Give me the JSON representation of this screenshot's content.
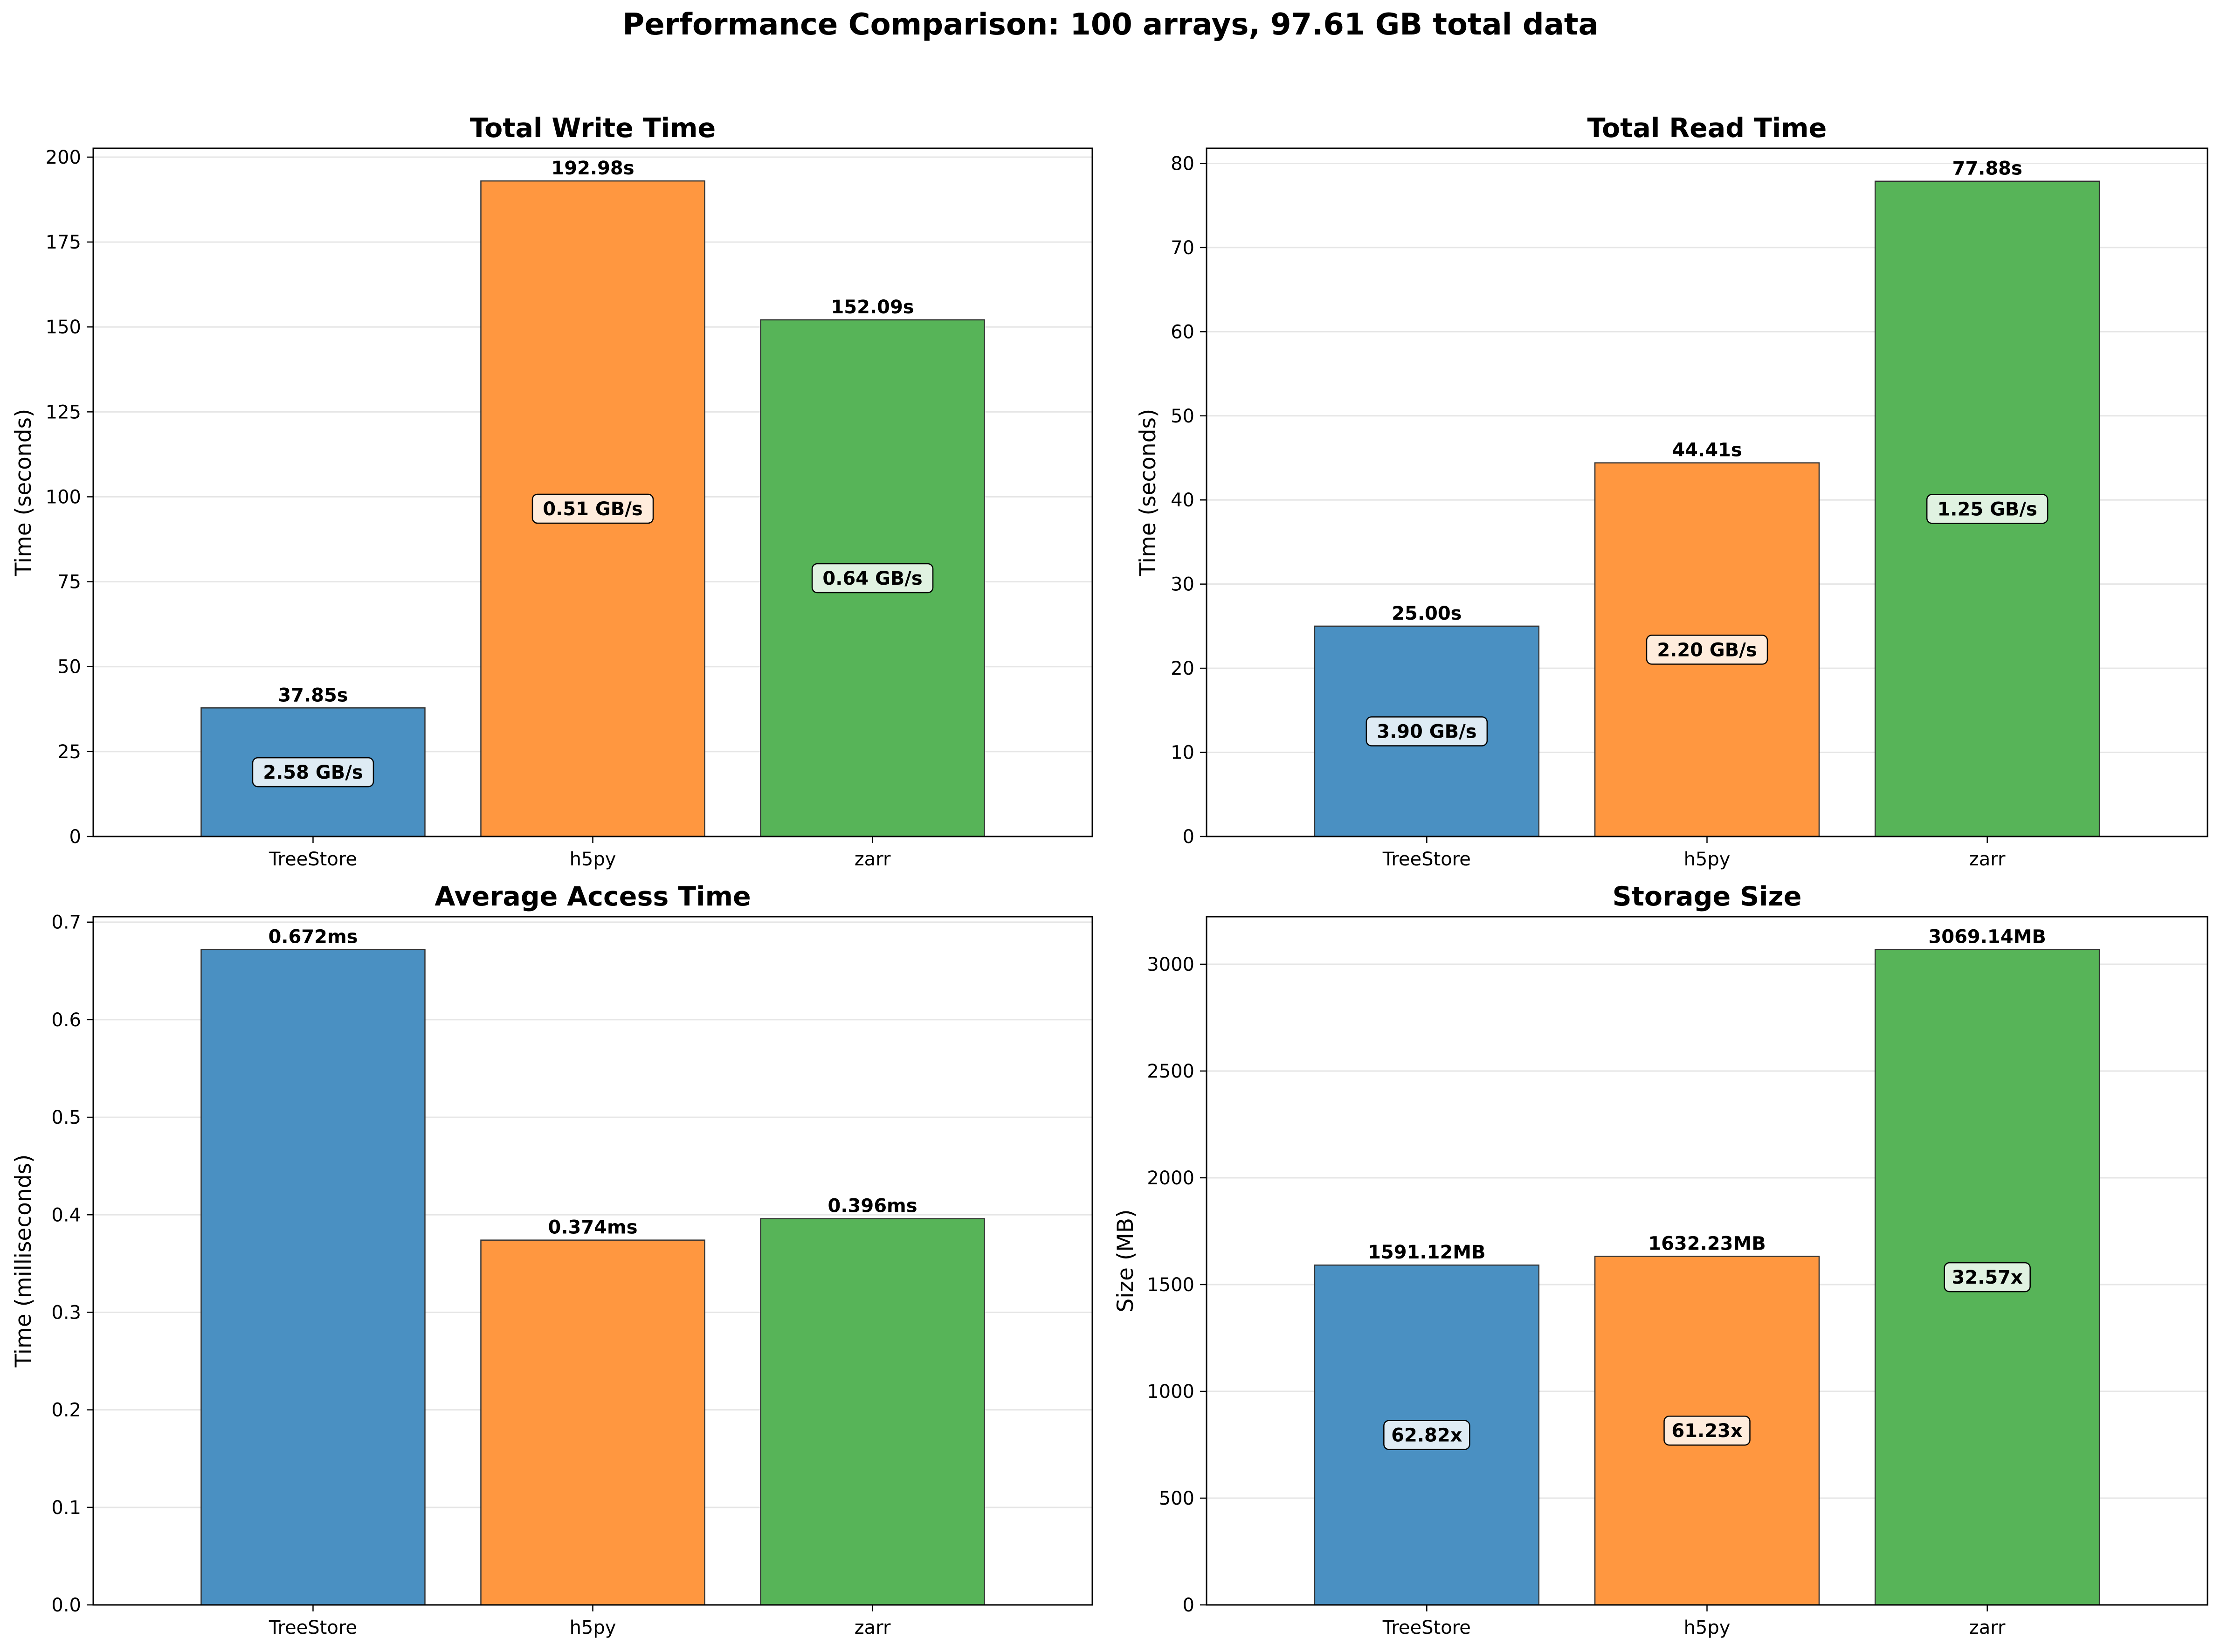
{
  "figure": {
    "title": "Performance Comparison: 100 arrays, 97.61 GB total data"
  },
  "colors": {
    "TreeStore": "#4a90c2",
    "h5py": "#ff9740",
    "zarr": "#57b458",
    "grid": "#e6e6e6"
  },
  "chart_data": [
    {
      "type": "bar",
      "title": "Total Write Time",
      "xlabel": "",
      "ylabel": "Time (seconds)",
      "categories": [
        "TreeStore",
        "h5py",
        "zarr"
      ],
      "values": [
        37.85,
        192.98,
        152.09
      ],
      "value_labels": [
        "37.85s",
        "192.98s",
        "152.09s"
      ],
      "inner_labels": [
        "2.58 GB/s",
        "0.51 GB/s",
        "0.64 GB/s"
      ],
      "ylim": [
        0,
        202.6
      ],
      "yticks": [
        0,
        25,
        50,
        75,
        100,
        125,
        150,
        175,
        200
      ],
      "ytick_labels": [
        "0",
        "25",
        "50",
        "75",
        "100",
        "125",
        "150",
        "175",
        "200"
      ],
      "grid": true
    },
    {
      "type": "bar",
      "title": "Total Read Time",
      "xlabel": "",
      "ylabel": "Time (seconds)",
      "categories": [
        "TreeStore",
        "h5py",
        "zarr"
      ],
      "values": [
        25.0,
        44.41,
        77.88
      ],
      "value_labels": [
        "25.00s",
        "44.41s",
        "77.88s"
      ],
      "inner_labels": [
        "3.90 GB/s",
        "2.20 GB/s",
        "1.25 GB/s"
      ],
      "ylim": [
        0,
        81.8
      ],
      "yticks": [
        0,
        10,
        20,
        30,
        40,
        50,
        60,
        70,
        80
      ],
      "ytick_labels": [
        "0",
        "10",
        "20",
        "30",
        "40",
        "50",
        "60",
        "70",
        "80"
      ],
      "grid": true
    },
    {
      "type": "bar",
      "title": "Average Access Time",
      "xlabel": "",
      "ylabel": "Time (milliseconds)",
      "categories": [
        "TreeStore",
        "h5py",
        "zarr"
      ],
      "values": [
        0.672,
        0.374,
        0.396
      ],
      "value_labels": [
        "0.672ms",
        "0.374ms",
        "0.396ms"
      ],
      "inner_labels": [],
      "ylim": [
        0,
        0.7056
      ],
      "yticks": [
        0,
        0.1,
        0.2,
        0.3,
        0.4,
        0.5,
        0.6,
        0.7
      ],
      "ytick_labels": [
        "0.0",
        "0.1",
        "0.2",
        "0.3",
        "0.4",
        "0.5",
        "0.6",
        "0.7"
      ],
      "grid": true
    },
    {
      "type": "bar",
      "title": "Storage Size",
      "xlabel": "",
      "ylabel": "Size (MB)",
      "categories": [
        "TreeStore",
        "h5py",
        "zarr"
      ],
      "values": [
        1591.12,
        1632.23,
        3069.14
      ],
      "value_labels": [
        "1591.12MB",
        "1632.23MB",
        "3069.14MB"
      ],
      "inner_labels": [
        "62.82x",
        "61.23x",
        "32.57x"
      ],
      "ylim": [
        0,
        3222.6
      ],
      "yticks": [
        0,
        500,
        1000,
        1500,
        2000,
        2500,
        3000
      ],
      "ytick_labels": [
        "0",
        "500",
        "1000",
        "1500",
        "2000",
        "2500",
        "3000"
      ],
      "grid": true
    }
  ]
}
